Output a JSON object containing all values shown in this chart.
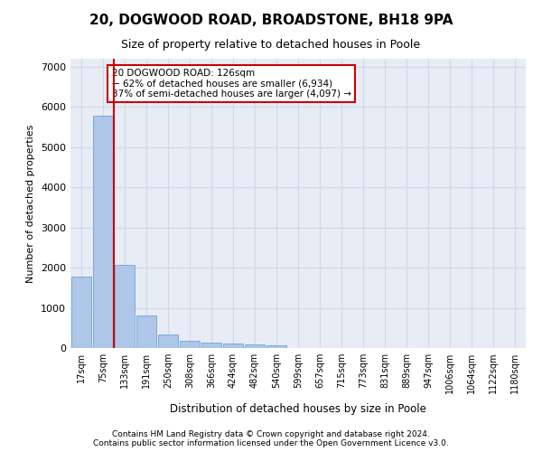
{
  "title1": "20, DOGWOOD ROAD, BROADSTONE, BH18 9PA",
  "title2": "Size of property relative to detached houses in Poole",
  "xlabel": "Distribution of detached houses by size in Poole",
  "ylabel": "Number of detached properties",
  "bin_labels": [
    "17sqm",
    "75sqm",
    "133sqm",
    "191sqm",
    "250sqm",
    "308sqm",
    "366sqm",
    "424sqm",
    "482sqm",
    "540sqm",
    "599sqm",
    "657sqm",
    "715sqm",
    "773sqm",
    "831sqm",
    "889sqm",
    "947sqm",
    "1006sqm",
    "1064sqm",
    "1122sqm",
    "1180sqm"
  ],
  "bar_values": [
    1780,
    5780,
    2060,
    820,
    340,
    190,
    130,
    110,
    100,
    60,
    0,
    0,
    0,
    0,
    0,
    0,
    0,
    0,
    0,
    0,
    0
  ],
  "bar_color": "#aec6e8",
  "bar_edgecolor": "#5b9bd5",
  "grid_color": "#d0d8e8",
  "background_color": "#e8ecf5",
  "annotation_text": "20 DOGWOOD ROAD: 126sqm\n← 62% of detached houses are smaller (6,934)\n37% of semi-detached houses are larger (4,097) →",
  "vline_x": 1.5,
  "vline_color": "#cc0000",
  "annotation_box_edgecolor": "#cc0000",
  "ylim": [
    0,
    7200
  ],
  "yticks": [
    0,
    1000,
    2000,
    3000,
    4000,
    5000,
    6000,
    7000
  ],
  "footer1": "Contains HM Land Registry data © Crown copyright and database right 2024.",
  "footer2": "Contains public sector information licensed under the Open Government Licence v3.0."
}
